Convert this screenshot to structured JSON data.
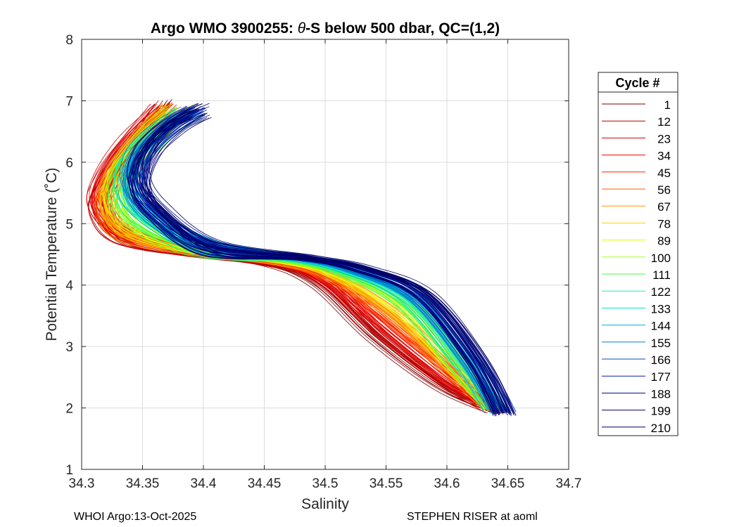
{
  "chart_data": {
    "type": "line",
    "title_prefix": "Argo WMO 3900255: ",
    "title_theta": "θ",
    "title_suffix": "-S below 500 dbar,  QC=(1,2)",
    "xlabel": "Salinity",
    "ylabel": "Potential Temperature (˚C)",
    "xlim": [
      34.3,
      34.7
    ],
    "ylim": [
      1,
      8
    ],
    "xticks": [
      "34.3",
      "34.35",
      "34.4",
      "34.45",
      "34.5",
      "34.55",
      "34.6",
      "34.65",
      "34.7"
    ],
    "yticks": [
      "1",
      "2",
      "3",
      "4",
      "5",
      "6",
      "7",
      "8"
    ],
    "grid": true,
    "legend_title": "Cycle #",
    "legend_placement": "outside-right",
    "series": [
      {
        "name": "1",
        "color": "#800000",
        "profile": [
          [
            34.645,
            1.95
          ],
          [
            34.6,
            2.35
          ],
          [
            34.545,
            3.15
          ],
          [
            34.5,
            4.0
          ],
          [
            34.46,
            4.35
          ],
          [
            34.4,
            4.5
          ],
          [
            34.34,
            4.8
          ],
          [
            34.318,
            5.3
          ],
          [
            34.323,
            5.7
          ],
          [
            34.345,
            6.3
          ],
          [
            34.37,
            7.0
          ]
        ]
      },
      {
        "name": "12",
        "color": "#b00000",
        "profile": [
          [
            34.645,
            1.96
          ],
          [
            34.6,
            2.4
          ],
          [
            34.548,
            3.2
          ],
          [
            34.502,
            4.05
          ],
          [
            34.46,
            4.36
          ],
          [
            34.4,
            4.5
          ],
          [
            34.34,
            4.82
          ],
          [
            34.318,
            5.3
          ],
          [
            34.324,
            5.75
          ],
          [
            34.345,
            6.35
          ],
          [
            34.37,
            6.95
          ]
        ]
      },
      {
        "name": "23",
        "color": "#d00000",
        "profile": [
          [
            34.645,
            1.97
          ],
          [
            34.605,
            2.45
          ],
          [
            34.55,
            3.3
          ],
          [
            34.505,
            4.1
          ],
          [
            34.46,
            4.38
          ],
          [
            34.4,
            4.52
          ],
          [
            34.34,
            4.85
          ],
          [
            34.32,
            5.3
          ],
          [
            34.325,
            5.8
          ],
          [
            34.345,
            6.4
          ],
          [
            34.375,
            6.95
          ]
        ]
      },
      {
        "name": "34",
        "color": "#f00000",
        "profile": [
          [
            34.645,
            1.98
          ],
          [
            34.605,
            2.5
          ],
          [
            34.552,
            3.35
          ],
          [
            34.505,
            4.1
          ],
          [
            34.465,
            4.38
          ],
          [
            34.4,
            4.53
          ],
          [
            34.34,
            4.86
          ],
          [
            34.32,
            5.3
          ],
          [
            34.325,
            5.8
          ],
          [
            34.348,
            6.4
          ],
          [
            34.372,
            6.9
          ]
        ]
      },
      {
        "name": "45",
        "color": "#ff2000",
        "profile": [
          [
            34.645,
            2.0
          ],
          [
            34.608,
            2.55
          ],
          [
            34.555,
            3.4
          ],
          [
            34.508,
            4.12
          ],
          [
            34.465,
            4.38
          ],
          [
            34.4,
            4.53
          ],
          [
            34.342,
            4.86
          ],
          [
            34.322,
            5.3
          ],
          [
            34.328,
            5.8
          ],
          [
            34.35,
            6.4
          ],
          [
            34.375,
            6.9
          ]
        ]
      },
      {
        "name": "56",
        "color": "#ff6000",
        "profile": [
          [
            34.645,
            2.0
          ],
          [
            34.61,
            2.6
          ],
          [
            34.56,
            3.5
          ],
          [
            34.51,
            4.15
          ],
          [
            34.468,
            4.38
          ],
          [
            34.4,
            4.54
          ],
          [
            34.343,
            4.87
          ],
          [
            34.325,
            5.3
          ],
          [
            34.33,
            5.8
          ],
          [
            34.352,
            6.4
          ],
          [
            34.378,
            6.9
          ]
        ]
      },
      {
        "name": "67",
        "color": "#ff9000",
        "profile": [
          [
            34.645,
            2.0
          ],
          [
            34.612,
            2.62
          ],
          [
            34.563,
            3.55
          ],
          [
            34.512,
            4.17
          ],
          [
            34.47,
            4.39
          ],
          [
            34.4,
            4.55
          ],
          [
            34.345,
            4.88
          ],
          [
            34.328,
            5.3
          ],
          [
            34.333,
            5.82
          ],
          [
            34.355,
            6.42
          ],
          [
            34.38,
            6.9
          ]
        ]
      },
      {
        "name": "78",
        "color": "#ffd000",
        "profile": [
          [
            34.645,
            2.0
          ],
          [
            34.614,
            2.64
          ],
          [
            34.565,
            3.6
          ],
          [
            34.515,
            4.18
          ],
          [
            34.472,
            4.4
          ],
          [
            34.4,
            4.56
          ],
          [
            34.347,
            4.9
          ],
          [
            34.33,
            5.35
          ],
          [
            34.335,
            5.85
          ],
          [
            34.357,
            6.45
          ],
          [
            34.382,
            6.9
          ]
        ]
      },
      {
        "name": "89",
        "color": "#e0ff00",
        "profile": [
          [
            34.645,
            2.0
          ],
          [
            34.615,
            2.65
          ],
          [
            34.567,
            3.65
          ],
          [
            34.517,
            4.2
          ],
          [
            34.474,
            4.4
          ],
          [
            34.4,
            4.58
          ],
          [
            34.35,
            4.95
          ],
          [
            34.333,
            5.4
          ],
          [
            34.338,
            5.9
          ],
          [
            34.36,
            6.45
          ],
          [
            34.385,
            6.9
          ]
        ]
      },
      {
        "name": "100",
        "color": "#a0ff20",
        "profile": [
          [
            34.645,
            2.0
          ],
          [
            34.615,
            2.66
          ],
          [
            34.57,
            3.7
          ],
          [
            34.52,
            4.2
          ],
          [
            34.476,
            4.4
          ],
          [
            34.402,
            4.6
          ],
          [
            34.353,
            5.0
          ],
          [
            34.335,
            5.45
          ],
          [
            34.34,
            5.95
          ],
          [
            34.362,
            6.5
          ],
          [
            34.387,
            6.9
          ]
        ]
      },
      {
        "name": "111",
        "color": "#40ff40",
        "profile": [
          [
            34.645,
            2.0
          ],
          [
            34.617,
            2.68
          ],
          [
            34.572,
            3.72
          ],
          [
            34.522,
            4.22
          ],
          [
            34.478,
            4.42
          ],
          [
            34.405,
            4.62
          ],
          [
            34.355,
            5.05
          ],
          [
            34.337,
            5.5
          ],
          [
            34.342,
            6.0
          ],
          [
            34.365,
            6.5
          ],
          [
            34.388,
            6.85
          ]
        ]
      },
      {
        "name": "122",
        "color": "#20f0a0",
        "profile": [
          [
            34.645,
            1.98
          ],
          [
            34.618,
            2.7
          ],
          [
            34.574,
            3.74
          ],
          [
            34.524,
            4.22
          ],
          [
            34.48,
            4.43
          ],
          [
            34.408,
            4.64
          ],
          [
            34.358,
            5.1
          ],
          [
            34.34,
            5.55
          ],
          [
            34.345,
            6.05
          ],
          [
            34.368,
            6.55
          ],
          [
            34.39,
            6.85
          ]
        ]
      },
      {
        "name": "133",
        "color": "#00e0d0",
        "profile": [
          [
            34.645,
            1.97
          ],
          [
            34.62,
            2.72
          ],
          [
            34.576,
            3.76
          ],
          [
            34.526,
            4.23
          ],
          [
            34.482,
            4.44
          ],
          [
            34.41,
            4.66
          ],
          [
            34.36,
            5.15
          ],
          [
            34.342,
            5.6
          ],
          [
            34.348,
            6.1
          ],
          [
            34.37,
            6.55
          ],
          [
            34.392,
            6.85
          ]
        ]
      },
      {
        "name": "144",
        "color": "#00b0e0",
        "profile": [
          [
            34.645,
            1.96
          ],
          [
            34.622,
            2.74
          ],
          [
            34.578,
            3.78
          ],
          [
            34.528,
            4.24
          ],
          [
            34.484,
            4.44
          ],
          [
            34.41,
            4.67
          ],
          [
            34.362,
            5.18
          ],
          [
            34.344,
            5.65
          ],
          [
            34.35,
            6.15
          ],
          [
            34.372,
            6.6
          ],
          [
            34.394,
            6.85
          ]
        ]
      },
      {
        "name": "155",
        "color": "#0080d0",
        "profile": [
          [
            34.648,
            1.95
          ],
          [
            34.624,
            2.76
          ],
          [
            34.58,
            3.8
          ],
          [
            34.53,
            4.25
          ],
          [
            34.486,
            4.45
          ],
          [
            34.41,
            4.67
          ],
          [
            34.363,
            5.2
          ],
          [
            34.346,
            5.68
          ],
          [
            34.352,
            6.2
          ],
          [
            34.374,
            6.62
          ],
          [
            34.396,
            6.87
          ]
        ]
      },
      {
        "name": "166",
        "color": "#0050c0",
        "profile": [
          [
            34.65,
            1.94
          ],
          [
            34.626,
            2.78
          ],
          [
            34.582,
            3.82
          ],
          [
            34.532,
            4.26
          ],
          [
            34.488,
            4.45
          ],
          [
            34.41,
            4.67
          ],
          [
            34.364,
            5.22
          ],
          [
            34.348,
            5.7
          ],
          [
            34.355,
            6.22
          ],
          [
            34.376,
            6.64
          ],
          [
            34.398,
            6.88
          ]
        ]
      },
      {
        "name": "177",
        "color": "#0020b0",
        "profile": [
          [
            34.652,
            1.93
          ],
          [
            34.628,
            2.78
          ],
          [
            34.584,
            3.84
          ],
          [
            34.534,
            4.27
          ],
          [
            34.49,
            4.46
          ],
          [
            34.41,
            4.67
          ],
          [
            34.365,
            5.24
          ],
          [
            34.35,
            5.72
          ],
          [
            34.357,
            6.24
          ],
          [
            34.378,
            6.66
          ],
          [
            34.4,
            6.88
          ]
        ]
      },
      {
        "name": "188",
        "color": "#000090",
        "profile": [
          [
            34.652,
            1.93
          ],
          [
            34.628,
            2.78
          ],
          [
            34.585,
            3.85
          ],
          [
            34.535,
            4.27
          ],
          [
            34.49,
            4.46
          ],
          [
            34.41,
            4.67
          ],
          [
            34.366,
            5.25
          ],
          [
            34.351,
            5.73
          ],
          [
            34.358,
            6.25
          ],
          [
            34.38,
            6.67
          ],
          [
            34.4,
            6.9
          ]
        ]
      },
      {
        "name": "199",
        "color": "#000070",
        "profile": [
          [
            34.652,
            1.92
          ],
          [
            34.63,
            2.8
          ],
          [
            34.586,
            3.86
          ],
          [
            34.536,
            4.28
          ],
          [
            34.49,
            4.46
          ],
          [
            34.41,
            4.67
          ],
          [
            34.367,
            5.26
          ],
          [
            34.352,
            5.74
          ],
          [
            34.36,
            6.26
          ],
          [
            34.38,
            6.68
          ],
          [
            34.402,
            6.88
          ]
        ]
      },
      {
        "name": "210",
        "color": "#000060",
        "profile": [
          [
            34.652,
            1.92
          ],
          [
            34.63,
            2.8
          ],
          [
            34.587,
            3.87
          ],
          [
            34.537,
            4.28
          ],
          [
            34.49,
            4.46
          ],
          [
            34.41,
            4.67
          ],
          [
            34.368,
            5.27
          ],
          [
            34.353,
            5.75
          ],
          [
            34.36,
            6.27
          ],
          [
            34.382,
            6.7
          ],
          [
            34.402,
            6.9
          ]
        ]
      }
    ]
  },
  "footer": {
    "left": "WHOI Argo:13-Oct-2025",
    "right": "STEPHEN RISER at aoml"
  }
}
